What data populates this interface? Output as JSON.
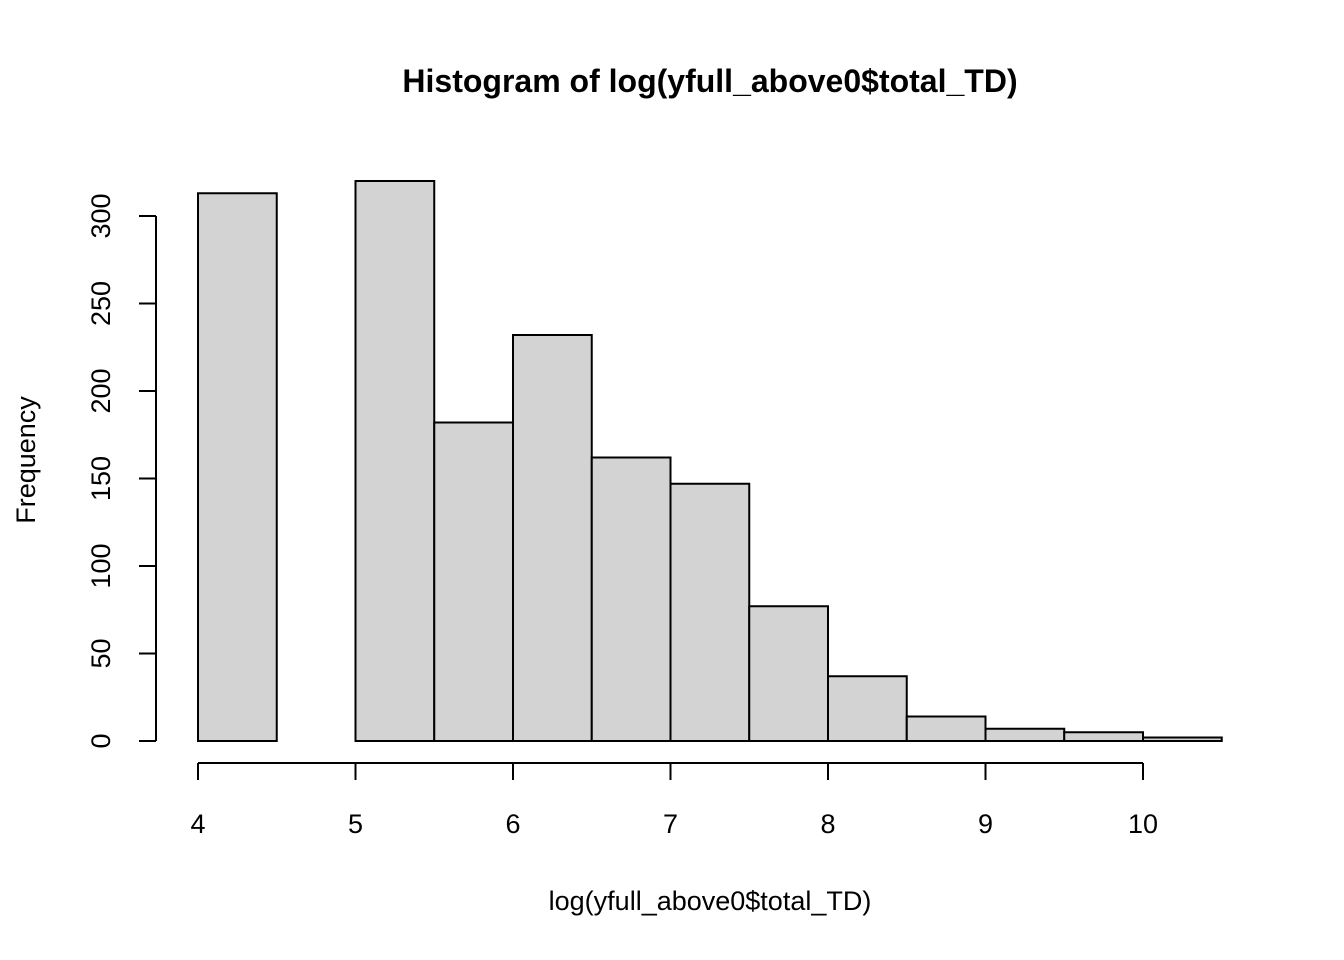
{
  "chart_data": {
    "type": "bar",
    "title": "Histogram of log(yfull_above0$total_TD)",
    "xlabel": "log(yfull_above0$total_TD)",
    "ylabel": "Frequency",
    "bins": [
      {
        "x0": 4.0,
        "x1": 4.5,
        "count": 313
      },
      {
        "x0": 4.5,
        "x1": 5.0,
        "count": 0
      },
      {
        "x0": 5.0,
        "x1": 5.5,
        "count": 320
      },
      {
        "x0": 5.5,
        "x1": 6.0,
        "count": 182
      },
      {
        "x0": 6.0,
        "x1": 6.5,
        "count": 232
      },
      {
        "x0": 6.5,
        "x1": 7.0,
        "count": 162
      },
      {
        "x0": 7.0,
        "x1": 7.5,
        "count": 147
      },
      {
        "x0": 7.5,
        "x1": 8.0,
        "count": 77
      },
      {
        "x0": 8.0,
        "x1": 8.5,
        "count": 37
      },
      {
        "x0": 8.5,
        "x1": 9.0,
        "count": 14
      },
      {
        "x0": 9.0,
        "x1": 9.5,
        "count": 7
      },
      {
        "x0": 9.5,
        "x1": 10.0,
        "count": 5
      },
      {
        "x0": 10.0,
        "x1": 10.5,
        "count": 2
      }
    ],
    "x_ticks": [
      4,
      5,
      6,
      7,
      8,
      9,
      10
    ],
    "y_ticks": [
      0,
      50,
      100,
      150,
      200,
      250,
      300
    ],
    "xlim": [
      4,
      10.5
    ],
    "ylim": [
      0,
      320
    ],
    "bar_color": "#d3d3d3",
    "grid": false
  }
}
